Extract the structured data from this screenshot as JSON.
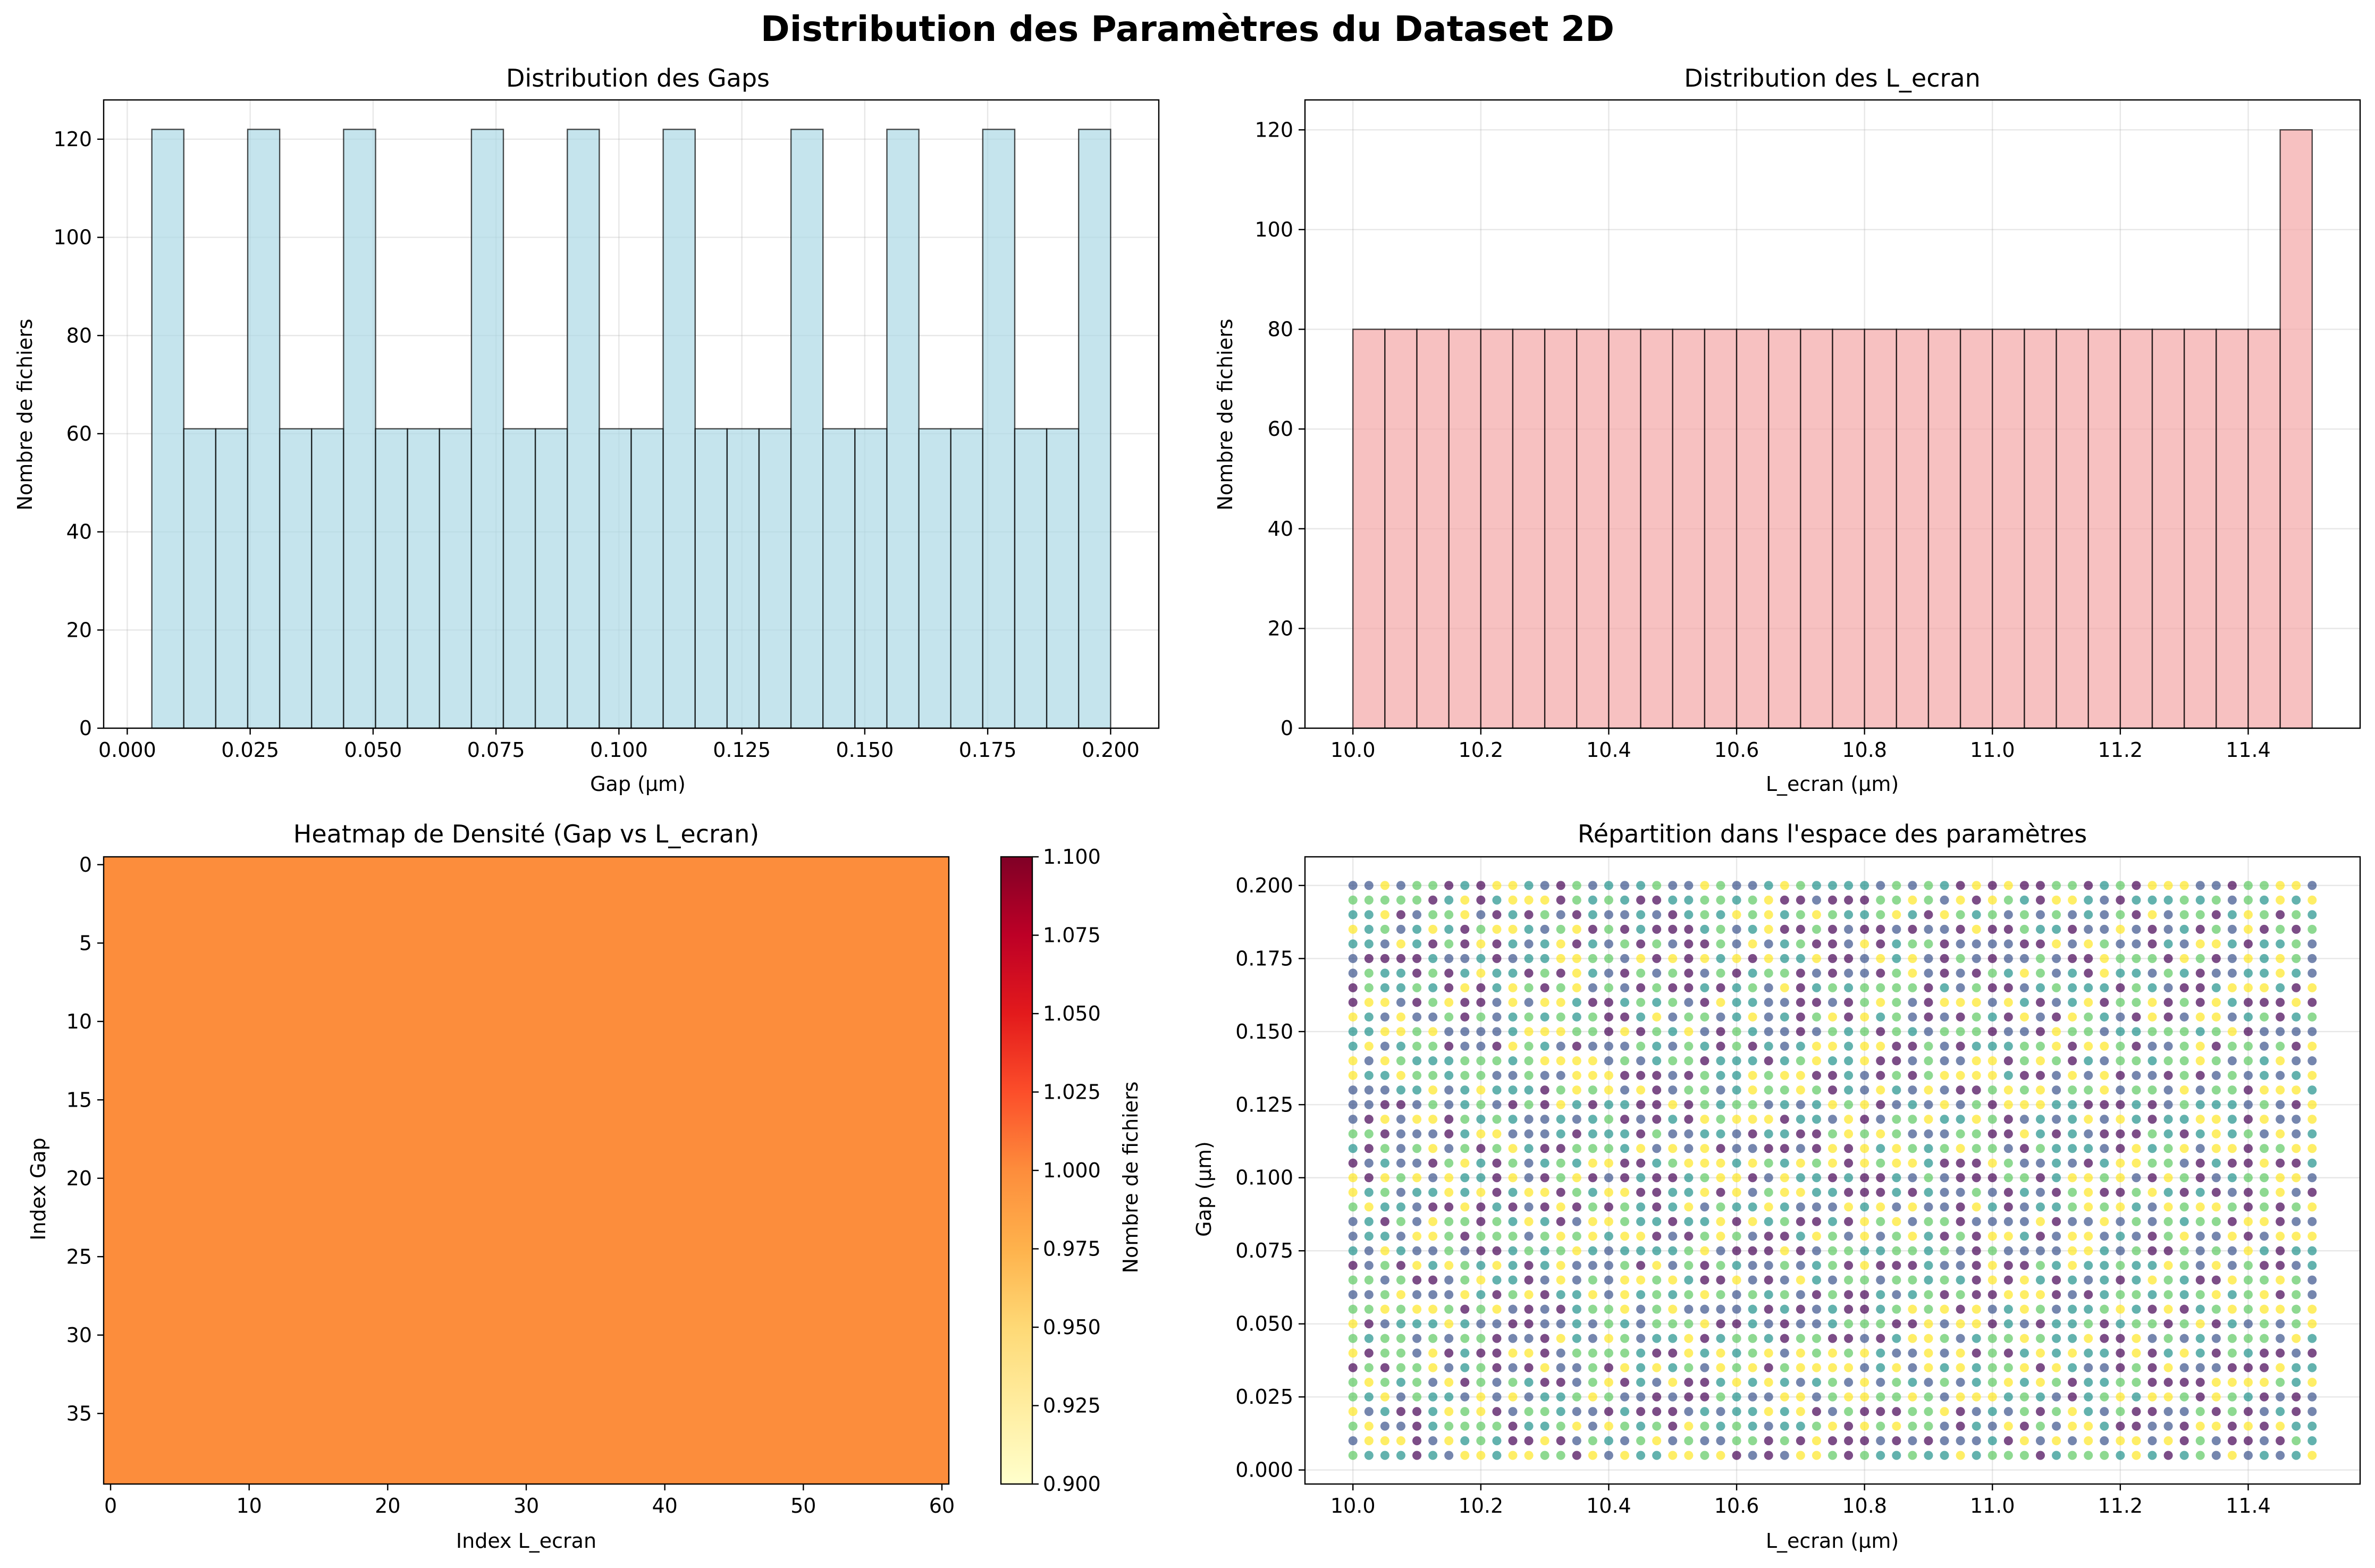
{
  "figure": {
    "suptitle": "Distribution des Paramètres du Dataset 2D"
  },
  "chart_data": [
    {
      "type": "bar",
      "title": "Distribution des Gaps",
      "xlabel": "Gap (µm)",
      "ylabel": "Nombre de fichiers",
      "xlim": [
        -0.0048,
        0.2098
      ],
      "ylim": [
        0,
        128
      ],
      "xticks": [
        "0.000",
        "0.025",
        "0.050",
        "0.075",
        "0.100",
        "0.125",
        "0.150",
        "0.175",
        "0.200"
      ],
      "yticks": [
        "0",
        "20",
        "40",
        "60",
        "80",
        "100",
        "120"
      ],
      "bin_range": [
        0.005,
        0.2
      ],
      "values": [
        122,
        61,
        61,
        122,
        61,
        61,
        122,
        61,
        61,
        61,
        122,
        61,
        61,
        122,
        61,
        61,
        122,
        61,
        61,
        61,
        122,
        61,
        61,
        122,
        61,
        61,
        122,
        61,
        61,
        122
      ],
      "color": "#add8e6",
      "edgecolor": "#000000",
      "grid": true
    },
    {
      "type": "bar",
      "title": "Distribution des L_ecran",
      "xlabel": "L_ecran (µm)",
      "ylabel": "Nombre de fichiers",
      "xlim": [
        9.925,
        11.575
      ],
      "ylim": [
        0,
        126
      ],
      "xticks": [
        "10.0",
        "10.2",
        "10.4",
        "10.6",
        "10.8",
        "11.0",
        "11.2",
        "11.4"
      ],
      "yticks": [
        "0",
        "20",
        "40",
        "60",
        "80",
        "100",
        "120"
      ],
      "bin_range": [
        10.0,
        11.5
      ],
      "values": [
        80,
        80,
        80,
        80,
        80,
        80,
        80,
        80,
        80,
        80,
        80,
        80,
        80,
        80,
        80,
        80,
        80,
        80,
        80,
        80,
        80,
        80,
        80,
        80,
        80,
        80,
        80,
        80,
        80,
        120
      ],
      "color": "#f4a6a6",
      "edgecolor": "#000000",
      "grid": true
    },
    {
      "type": "heatmap",
      "title": "Heatmap de Densité (Gap vs L_ecran)",
      "xlabel": "Index L_ecran",
      "ylabel": "Index Gap",
      "xlim": [
        -0.5,
        60.5
      ],
      "ylim": [
        39.5,
        -0.5
      ],
      "xticks": [
        "0",
        "10",
        "20",
        "30",
        "40",
        "50",
        "60"
      ],
      "yticks": [
        "0",
        "5",
        "10",
        "15",
        "20",
        "25",
        "30",
        "35"
      ],
      "rows": 40,
      "cols": 61,
      "cell_value": 1.0,
      "cell_color": "#fc8d3c",
      "colormap": "YlOrRd",
      "colorbar": {
        "label": "Nombre de fichiers",
        "range": [
          0.9,
          1.1
        ],
        "ticks": [
          "0.900",
          "0.925",
          "0.950",
          "0.975",
          "1.000",
          "1.025",
          "1.050",
          "1.075",
          "1.100"
        ]
      }
    },
    {
      "type": "scatter",
      "title": "Répartition dans l'espace des paramètres",
      "xlabel": "L_ecran (µm)",
      "ylabel": "Gap (µm)",
      "xlim": [
        9.925,
        11.575
      ],
      "ylim": [
        -0.0048,
        0.2098
      ],
      "xticks": [
        "10.0",
        "10.2",
        "10.4",
        "10.6",
        "10.8",
        "11.0",
        "11.2",
        "11.4"
      ],
      "yticks": [
        "0.000",
        "0.025",
        "0.050",
        "0.075",
        "0.100",
        "0.125",
        "0.150",
        "0.175",
        "0.200"
      ],
      "x_grid": {
        "start": 10.0,
        "stop": 11.5,
        "count": 61
      },
      "y_grid": {
        "start": 0.005,
        "stop": 0.2,
        "count": 40
      },
      "colors": [
        "#440154",
        "#3b528b",
        "#21918c",
        "#5ec962",
        "#fde725"
      ],
      "alpha": 0.7,
      "grid": true
    }
  ]
}
